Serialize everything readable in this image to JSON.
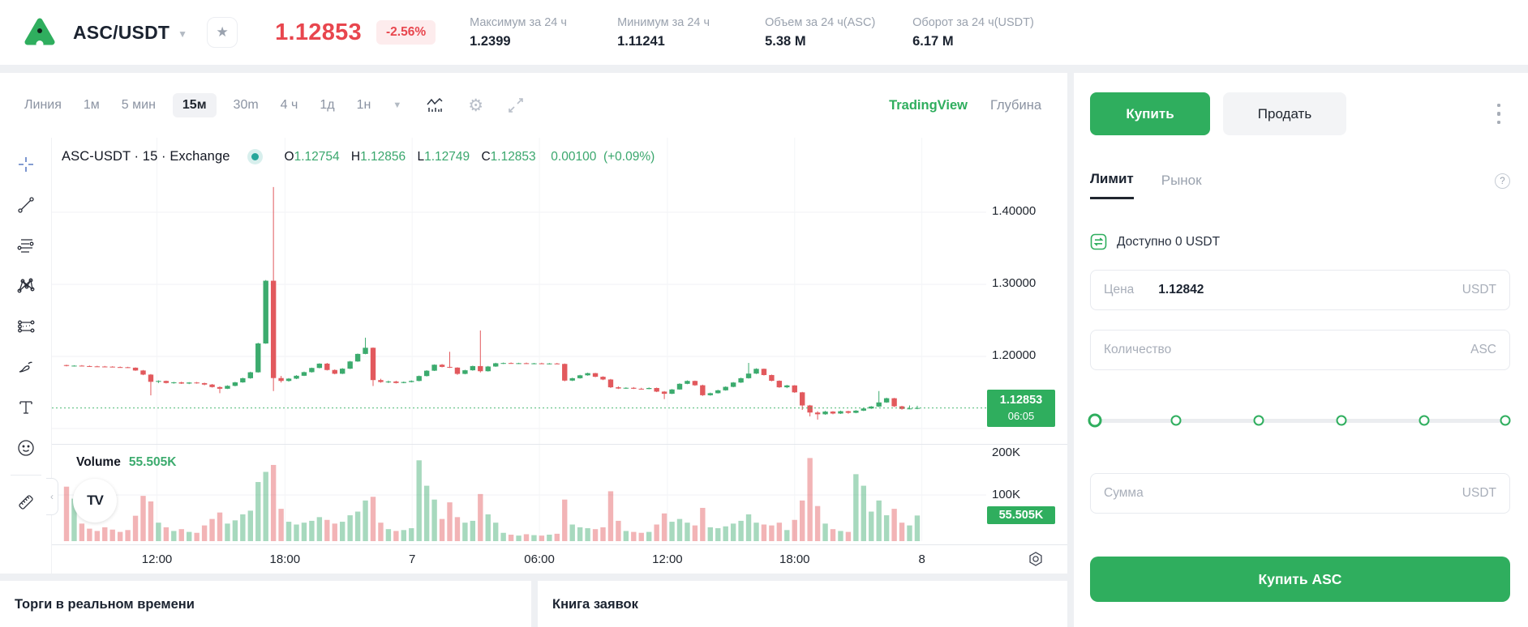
{
  "header": {
    "pair": "ASC/USDT",
    "price": "1.12853",
    "change": "-2.56%",
    "stats": [
      {
        "label": "Максимум за 24 ч",
        "value": "1.2399"
      },
      {
        "label": "Минимум за 24 ч",
        "value": "1.11241"
      },
      {
        "label": "Объем за 24 ч(ASC)",
        "value": "5.38 M"
      },
      {
        "label": "Оборот за 24 ч(USDT)",
        "value": "6.17 M"
      }
    ]
  },
  "chart_toolbar": {
    "chart_type": "Линия",
    "intervals": [
      "1м",
      "5 мин",
      "15м",
      "30m",
      "4 ч",
      "1д",
      "1н"
    ],
    "active_interval": "15м",
    "provider": "TradingView",
    "depth": "Глубина"
  },
  "legend": {
    "symbol": "ASC-USDT · 15 · Exchange",
    "o_label": "O",
    "o": "1.12754",
    "h_label": "H",
    "h": "1.12856",
    "l_label": "L",
    "l": "1.12749",
    "c_label": "C",
    "c": "1.12853",
    "change_abs": "0.00100",
    "change_pct": "(+0.09%)"
  },
  "chart_axes": {
    "price_labels": [
      "1.40000",
      "1.30000",
      "1.20000"
    ],
    "last_price_label": "1.12853",
    "last_time": "06:05",
    "vol_labels": [
      "200K",
      "100K"
    ],
    "vol_badge": "55.505K"
  },
  "volume_legend": {
    "label": "Volume",
    "value": "55.505K"
  },
  "watermark": "TV",
  "colors": {
    "candle_up": "#3cab6e",
    "candle_down": "#e2595d",
    "buy_green": "#2fae5e",
    "price_red": "#e8464e",
    "grid": "#f0f2f5"
  },
  "chart_data": {
    "type": "candlestick+volume",
    "title": "ASC-USDT · 15 · Exchange",
    "interval_minutes": 15,
    "note": "candles approximated from pixels as [open,high,low,close,volumeK]",
    "price_gridlines": [
      1.4,
      1.3,
      1.2,
      1.1
    ],
    "last_price": 1.12853,
    "volume_gridline_k": 100,
    "time_ticks": [
      {
        "label": "12:00",
        "pos": 11.8
      },
      {
        "label": "18:00",
        "pos": 28.5
      },
      {
        "label": "7",
        "pos": 45.1
      },
      {
        "label": "06:00",
        "pos": 61.7
      },
      {
        "label": "12:00",
        "pos": 78.4
      },
      {
        "label": "18:00",
        "pos": 95.0
      },
      {
        "label": "8",
        "pos": 111.6
      }
    ],
    "candles": [
      [
        1.188,
        1.1885,
        1.1862,
        1.1868,
        118
      ],
      [
        1.1868,
        1.1878,
        1.186,
        1.1872,
        92
      ],
      [
        1.1872,
        1.188,
        1.1865,
        1.1866,
        38
      ],
      [
        1.1866,
        1.1874,
        1.1858,
        1.1862,
        27
      ],
      [
        1.1862,
        1.187,
        1.1855,
        1.186,
        22
      ],
      [
        1.186,
        1.1868,
        1.1852,
        1.1858,
        30
      ],
      [
        1.1858,
        1.1864,
        1.1848,
        1.1852,
        25
      ],
      [
        1.1852,
        1.186,
        1.1845,
        1.185,
        20
      ],
      [
        1.185,
        1.1856,
        1.184,
        1.1844,
        24
      ],
      [
        1.1844,
        1.1848,
        1.18,
        1.1805,
        55
      ],
      [
        1.1805,
        1.1812,
        1.174,
        1.1748,
        98
      ],
      [
        1.1748,
        1.1756,
        1.146,
        1.1648,
        86
      ],
      [
        1.1648,
        1.1668,
        1.163,
        1.166,
        40
      ],
      [
        1.166,
        1.1665,
        1.1625,
        1.1632,
        30
      ],
      [
        1.1632,
        1.1648,
        1.1622,
        1.164,
        22
      ],
      [
        1.164,
        1.165,
        1.1618,
        1.1624,
        26
      ],
      [
        1.1624,
        1.1644,
        1.1616,
        1.1638,
        20
      ],
      [
        1.1638,
        1.1646,
        1.1622,
        1.163,
        18
      ],
      [
        1.163,
        1.1636,
        1.16,
        1.161,
        34
      ],
      [
        1.161,
        1.1618,
        1.1568,
        1.1575,
        48
      ],
      [
        1.1575,
        1.1585,
        1.149,
        1.1552,
        62
      ],
      [
        1.1552,
        1.16,
        1.1548,
        1.1592,
        38
      ],
      [
        1.1592,
        1.1648,
        1.1585,
        1.164,
        45
      ],
      [
        1.164,
        1.1705,
        1.1635,
        1.1698,
        58
      ],
      [
        1.1698,
        1.1788,
        1.169,
        1.178,
        66
      ],
      [
        1.178,
        1.219,
        1.1775,
        1.218,
        128
      ],
      [
        1.218,
        1.306,
        1.2175,
        1.305,
        150
      ],
      [
        1.305,
        1.435,
        1.152,
        1.17,
        165
      ],
      [
        1.17,
        1.173,
        1.1638,
        1.166,
        70
      ],
      [
        1.166,
        1.17,
        1.165,
        1.1692,
        42
      ],
      [
        1.1692,
        1.174,
        1.1685,
        1.1732,
        36
      ],
      [
        1.1732,
        1.179,
        1.1728,
        1.1782,
        40
      ],
      [
        1.1782,
        1.1845,
        1.1776,
        1.184,
        44
      ],
      [
        1.184,
        1.1905,
        1.1835,
        1.19,
        52
      ],
      [
        1.19,
        1.191,
        1.1805,
        1.1812,
        46
      ],
      [
        1.1812,
        1.182,
        1.1752,
        1.176,
        38
      ],
      [
        1.176,
        1.1838,
        1.1755,
        1.183,
        42
      ],
      [
        1.183,
        1.1938,
        1.1825,
        1.193,
        56
      ],
      [
        1.193,
        1.204,
        1.1925,
        1.2035,
        64
      ],
      [
        1.2035,
        1.226,
        1.203,
        1.212,
        88
      ],
      [
        1.212,
        1.2125,
        1.159,
        1.1672,
        96
      ],
      [
        1.1672,
        1.169,
        1.1635,
        1.1645,
        40
      ],
      [
        1.1645,
        1.1665,
        1.163,
        1.1652,
        26
      ],
      [
        1.1652,
        1.1662,
        1.1625,
        1.1632,
        22
      ],
      [
        1.1632,
        1.1652,
        1.1628,
        1.1645,
        24
      ],
      [
        1.1645,
        1.1668,
        1.164,
        1.166,
        28
      ],
      [
        1.166,
        1.1735,
        1.1655,
        1.1728,
        175
      ],
      [
        1.1728,
        1.181,
        1.1722,
        1.1802,
        120
      ],
      [
        1.1802,
        1.189,
        1.1798,
        1.1885,
        90
      ],
      [
        1.1885,
        1.1895,
        1.1848,
        1.1855,
        48
      ],
      [
        1.1855,
        1.2065,
        1.184,
        1.1845,
        84
      ],
      [
        1.1845,
        1.185,
        1.1745,
        1.1758,
        52
      ],
      [
        1.1758,
        1.1815,
        1.1752,
        1.1808,
        40
      ],
      [
        1.1808,
        1.1872,
        1.1802,
        1.1866,
        44
      ],
      [
        1.1866,
        1.236,
        1.1778,
        1.1795,
        102
      ],
      [
        1.1795,
        1.1868,
        1.179,
        1.186,
        58
      ],
      [
        1.186,
        1.1912,
        1.1855,
        1.1905,
        40
      ],
      [
        1.1905,
        1.1915,
        1.1895,
        1.1908,
        18
      ],
      [
        1.1908,
        1.1916,
        1.1898,
        1.1902,
        14
      ],
      [
        1.1902,
        1.1912,
        1.1895,
        1.1906,
        12
      ],
      [
        1.1906,
        1.1914,
        1.1896,
        1.19,
        15
      ],
      [
        1.19,
        1.191,
        1.1892,
        1.1904,
        13
      ],
      [
        1.1904,
        1.1912,
        1.1894,
        1.1898,
        12
      ],
      [
        1.1898,
        1.1908,
        1.189,
        1.1902,
        14
      ],
      [
        1.1902,
        1.191,
        1.1893,
        1.1896,
        16
      ],
      [
        1.1896,
        1.1902,
        1.1655,
        1.1665,
        90
      ],
      [
        1.1665,
        1.1705,
        1.1658,
        1.1698,
        36
      ],
      [
        1.1698,
        1.1745,
        1.1692,
        1.1738,
        30
      ],
      [
        1.1738,
        1.1775,
        1.1732,
        1.1768,
        28
      ],
      [
        1.1768,
        1.1772,
        1.1712,
        1.1718,
        26
      ],
      [
        1.1718,
        1.1725,
        1.1672,
        1.168,
        30
      ],
      [
        1.168,
        1.1688,
        1.1562,
        1.1572,
        108
      ],
      [
        1.1572,
        1.1585,
        1.1548,
        1.1555,
        44
      ],
      [
        1.1555,
        1.1572,
        1.155,
        1.1565,
        22
      ],
      [
        1.1565,
        1.1575,
        1.1548,
        1.1552,
        20
      ],
      [
        1.1552,
        1.1565,
        1.1542,
        1.1548,
        18
      ],
      [
        1.1548,
        1.157,
        1.1545,
        1.1562,
        20
      ],
      [
        1.1562,
        1.1568,
        1.1505,
        1.1512,
        36
      ],
      [
        1.1512,
        1.152,
        1.1408,
        1.1482,
        60
      ],
      [
        1.1482,
        1.1548,
        1.1478,
        1.1542,
        42
      ],
      [
        1.1542,
        1.1628,
        1.1538,
        1.162,
        48
      ],
      [
        1.162,
        1.1668,
        1.1615,
        1.166,
        40
      ],
      [
        1.166,
        1.1665,
        1.1592,
        1.16,
        34
      ],
      [
        1.16,
        1.1608,
        1.1452,
        1.1462,
        72
      ],
      [
        1.1462,
        1.1498,
        1.1455,
        1.149,
        30
      ],
      [
        1.149,
        1.1538,
        1.1485,
        1.153,
        28
      ],
      [
        1.153,
        1.1585,
        1.1525,
        1.1578,
        32
      ],
      [
        1.1578,
        1.1645,
        1.1572,
        1.1638,
        38
      ],
      [
        1.1638,
        1.1705,
        1.1632,
        1.1698,
        44
      ],
      [
        1.1698,
        1.191,
        1.1692,
        1.1762,
        58
      ],
      [
        1.1762,
        1.1835,
        1.1755,
        1.1828,
        40
      ],
      [
        1.1828,
        1.1832,
        1.1735,
        1.1742,
        36
      ],
      [
        1.1742,
        1.1748,
        1.1655,
        1.1662,
        34
      ],
      [
        1.1662,
        1.1668,
        1.1565,
        1.1572,
        40
      ],
      [
        1.1572,
        1.1605,
        1.156,
        1.1598,
        24
      ],
      [
        1.1598,
        1.1602,
        1.1495,
        1.1502,
        46
      ],
      [
        1.1502,
        1.1508,
        1.1258,
        1.132,
        88
      ],
      [
        1.132,
        1.1328,
        1.1168,
        1.1222,
        180
      ],
      [
        1.1222,
        1.124,
        1.1124,
        1.1198,
        76
      ],
      [
        1.1198,
        1.1245,
        1.119,
        1.1235,
        38
      ],
      [
        1.1235,
        1.1242,
        1.1198,
        1.1208,
        26
      ],
      [
        1.1208,
        1.1248,
        1.1202,
        1.124,
        22
      ],
      [
        1.124,
        1.1246,
        1.1205,
        1.1218,
        20
      ],
      [
        1.1218,
        1.1255,
        1.1212,
        1.1248,
        145
      ],
      [
        1.1248,
        1.1285,
        1.1242,
        1.1278,
        120
      ],
      [
        1.1278,
        1.1312,
        1.1272,
        1.1305,
        64
      ],
      [
        1.1305,
        1.152,
        1.1298,
        1.1362,
        88
      ],
      [
        1.1362,
        1.1428,
        1.1356,
        1.142,
        56
      ],
      [
        1.142,
        1.1425,
        1.1298,
        1.1308,
        70
      ],
      [
        1.1308,
        1.1315,
        1.1262,
        1.1272,
        40
      ],
      [
        1.1272,
        1.132,
        1.1268,
        1.1278,
        34
      ],
      [
        1.1278,
        1.1316,
        1.1268,
        1.12853,
        55.5
      ]
    ]
  },
  "trade_panel": {
    "buy": "Купить",
    "sell": "Продать",
    "tabs": [
      "Лимит",
      "Рынок"
    ],
    "available": "Доступно 0 USDT",
    "price_label": "Цена",
    "price_value": "1.12842",
    "price_unit": "USDT",
    "amount_placeholder": "Количество",
    "amount_unit": "ASC",
    "total_placeholder": "Сумма",
    "total_unit": "USDT",
    "submit": "Купить ASC",
    "help_icon": "?"
  },
  "bottom": {
    "trades_title": "Торги в реальном времени",
    "orderbook_title": "Книга заявок"
  }
}
